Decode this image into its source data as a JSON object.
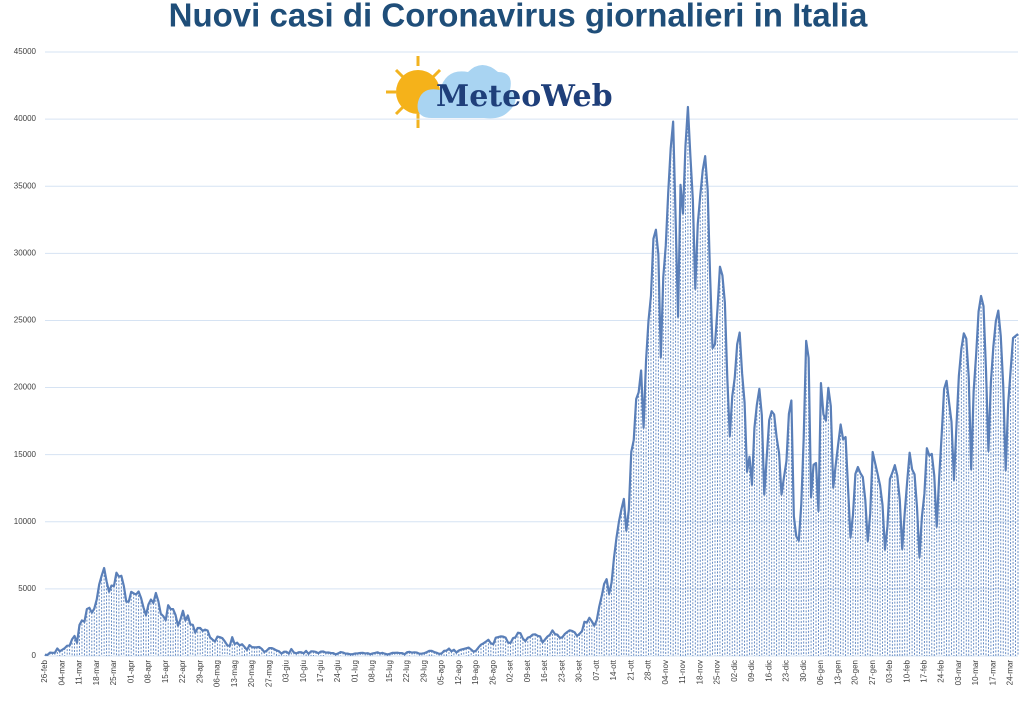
{
  "chart_data": {
    "type": "line",
    "title": "Nuovi casi di Coronavirus giornalieri in Italia",
    "logo_text": "MeteoWeb",
    "categories": [
      "26-feb",
      null,
      null,
      null,
      null,
      null,
      null,
      "04-mar",
      null,
      null,
      null,
      null,
      null,
      null,
      "11-mar",
      null,
      null,
      null,
      null,
      null,
      null,
      "18-mar",
      null,
      null,
      null,
      null,
      null,
      null,
      "25-mar",
      null,
      null,
      null,
      null,
      null,
      null,
      "01-apr",
      null,
      null,
      null,
      null,
      null,
      null,
      "08-apr",
      null,
      null,
      null,
      null,
      null,
      null,
      "15-apr",
      null,
      null,
      null,
      null,
      null,
      null,
      "22-apr",
      null,
      null,
      null,
      null,
      null,
      null,
      "29-apr",
      null,
      null,
      null,
      null,
      null,
      null,
      "06-mag",
      null,
      null,
      null,
      null,
      null,
      null,
      "13-mag",
      null,
      null,
      null,
      null,
      null,
      null,
      "20-mag",
      null,
      null,
      null,
      null,
      null,
      null,
      "27-mag",
      null,
      null,
      null,
      null,
      null,
      null,
      "03-giu",
      null,
      null,
      null,
      null,
      null,
      null,
      "10-giu",
      null,
      null,
      null,
      null,
      null,
      null,
      "17-giu",
      null,
      null,
      null,
      null,
      null,
      null,
      "24-giu",
      null,
      null,
      null,
      null,
      null,
      null,
      "01-lug",
      null,
      null,
      null,
      null,
      null,
      null,
      "08-lug",
      null,
      null,
      null,
      null,
      null,
      null,
      "15-lug",
      null,
      null,
      null,
      null,
      null,
      null,
      "22-lug",
      null,
      null,
      null,
      null,
      null,
      null,
      "29-lug",
      null,
      null,
      null,
      null,
      null,
      null,
      "05-ago",
      null,
      null,
      null,
      null,
      null,
      null,
      "12-ago",
      null,
      null,
      null,
      null,
      null,
      null,
      "19-ago",
      null,
      null,
      null,
      null,
      null,
      null,
      "26-ago",
      null,
      null,
      null,
      null,
      null,
      null,
      "02-set",
      null,
      null,
      null,
      null,
      null,
      null,
      "09-set",
      null,
      null,
      null,
      null,
      null,
      null,
      "16-set",
      null,
      null,
      null,
      null,
      null,
      null,
      "23-set",
      null,
      null,
      null,
      null,
      null,
      null,
      "30-set",
      null,
      null,
      null,
      null,
      null,
      null,
      "07-ott",
      null,
      null,
      null,
      null,
      null,
      null,
      "14-ott",
      null,
      null,
      null,
      null,
      null,
      null,
      "21-ott",
      null,
      null,
      null,
      null,
      null,
      null,
      "28-ott",
      null,
      null,
      null,
      null,
      null,
      null,
      "04-nov",
      null,
      null,
      null,
      null,
      null,
      null,
      "11-nov",
      null,
      null,
      null,
      null,
      null,
      null,
      "18-nov",
      null,
      null,
      null,
      null,
      null,
      null,
      "25-nov",
      null,
      null,
      null,
      null,
      null,
      null,
      "02-dic",
      null,
      null,
      null,
      null,
      null,
      null,
      "09-dic",
      null,
      null,
      null,
      null,
      null,
      null,
      "16-dic",
      null,
      null,
      null,
      null,
      null,
      null,
      "23-dic",
      null,
      null,
      null,
      null,
      null,
      null,
      "30-dic",
      null,
      null,
      null,
      null,
      null,
      null,
      "06-gen",
      null,
      null,
      null,
      null,
      null,
      null,
      "13-gen",
      null,
      null,
      null,
      null,
      null,
      null,
      "20-gen",
      null,
      null,
      null,
      null,
      null,
      null,
      "27-gen",
      null,
      null,
      null,
      null,
      null,
      null,
      "03-feb",
      null,
      null,
      null,
      null,
      null,
      null,
      "10-feb",
      null,
      null,
      null,
      null,
      null,
      null,
      "17-feb",
      null,
      null,
      null,
      null,
      null,
      null,
      "24-feb",
      null,
      null,
      null,
      null,
      null,
      null,
      "03-mar",
      null,
      null,
      null,
      null,
      null,
      null,
      "10-mar",
      null,
      null,
      null,
      null,
      null,
      null,
      "17-mar",
      null,
      null,
      null,
      null,
      null,
      null,
      "24-mar",
      null,
      null,
      null
    ],
    "values": [
      93,
      78,
      250,
      238,
      240,
      561,
      347,
      466,
      587,
      769,
      778,
      1247,
      1492,
      977,
      2313,
      2651,
      2547,
      3497,
      3590,
      3233,
      3526,
      4207,
      5322,
      5986,
      6557,
      5560,
      4789,
      5249,
      5210,
      6203,
      5909,
      5974,
      5217,
      4050,
      4053,
      4782,
      4668,
      4585,
      4805,
      4316,
      3599,
      3039,
      3836,
      4204,
      3951,
      4694,
      4092,
      3153,
      2972,
      2667,
      3786,
      3493,
      3491,
      3047,
      2256,
      2729,
      3370,
      2646,
      3021,
      2357,
      2324,
      1739,
      2091,
      2086,
      1872,
      1965,
      1900,
      1389,
      1221,
      1075,
      1444,
      1401,
      1327,
      1083,
      802,
      744,
      1402,
      888,
      992,
      789,
      875,
      675,
      451,
      813,
      665,
      642,
      652,
      669,
      531,
      300,
      397,
      584,
      593,
      516,
      416,
      355,
      178,
      318,
      321,
      177,
      518,
      270,
      197,
      280,
      283,
      202,
      379,
      163,
      346,
      338,
      301,
      210,
      328,
      333,
      251,
      262,
      224,
      218,
      122,
      190,
      296,
      259,
      175,
      174,
      126,
      142,
      187,
      201,
      223,
      235,
      192,
      208,
      138,
      193,
      229,
      276,
      188,
      234,
      169,
      114,
      162,
      230,
      233,
      249,
      219,
      218,
      129,
      280,
      306,
      252,
      275,
      255,
      170,
      181,
      212,
      289,
      386,
      379,
      295,
      239,
      159,
      190,
      384,
      402,
      552,
      347,
      463,
      259,
      412,
      481,
      523,
      574,
      629,
      479,
      320,
      403,
      642,
      845,
      947,
      1071,
      1210,
      953,
      878,
      1367,
      1411,
      1462,
      1444,
      1365,
      996,
      978,
      1326,
      1397,
      1733,
      1695,
      1297,
      1108,
      1370,
      1434,
      1597,
      1616,
      1501,
      1458,
      1008,
      1229,
      1452,
      1585,
      1907,
      1638,
      1587,
      1350,
      1392,
      1640,
      1786,
      1912,
      1869,
      1766,
      1494,
      1648,
      1851,
      2548,
      2499,
      2844,
      2578,
      2257,
      2677,
      3678,
      4458,
      5372,
      5724,
      4619,
      5456,
      7332,
      8804,
      10010,
      10925,
      11705,
      9338,
      10874,
      15199,
      16079,
      19143,
      19644,
      21273,
      17012,
      21994,
      24991,
      26831,
      31084,
      31758,
      29907,
      22253,
      28244,
      30550,
      34505,
      37809,
      39811,
      32616,
      25271,
      35098,
      32961,
      37978,
      40902,
      37255,
      33979,
      27354,
      32191,
      34282,
      36176,
      37242,
      34767,
      28337,
      22930,
      23232,
      25853,
      29003,
      28352,
      26323,
      20648,
      16377,
      19350,
      20709,
      23225,
      24099,
      21052,
      18887,
      13720,
      14842,
      12756,
      16999,
      18727,
      19903,
      17938,
      12030,
      14844,
      17572,
      18236,
      17992,
      16308,
      15104,
      12030,
      13318,
      14522,
      18040,
      19037,
      10407,
      8913,
      8585,
      11212,
      16202,
      23477,
      22211,
      11831,
      14245,
      14378,
      10800,
      20331,
      18020,
      17533,
      19978,
      18627,
      12545,
      14242,
      15774,
      17246,
      16146,
      16310,
      12545,
      8824,
      10497,
      13571,
      14078,
      13633,
      13331,
      11629,
      8561,
      10593,
      15204,
      14372,
      13574,
      12715,
      11252,
      7925,
      9660,
      13189,
      13659,
      14218,
      13442,
      11641,
      7970,
      10630,
      12956,
      15146,
      13908,
      13532,
      11068,
      7351,
      10386,
      12074,
      15479,
      14931,
      15060,
      13452,
      9630,
      13314,
      16424,
      19886,
      20499,
      18916,
      17455,
      13114,
      17083,
      20884,
      22865,
      24036,
      23641,
      20765,
      13902,
      19749,
      22409,
      25673,
      26824,
      26062,
      21315,
      15267,
      20396,
      23059,
      24935,
      25735,
      23832,
      20159,
      13846,
      18765,
      21267,
      23696,
      23839,
      23987
    ],
    "color": "#5a7fb8",
    "ylim": [
      0,
      45000
    ],
    "yticks": [
      0,
      5000,
      10000,
      15000,
      20000,
      25000,
      30000,
      35000,
      40000,
      45000
    ],
    "grid": true
  }
}
